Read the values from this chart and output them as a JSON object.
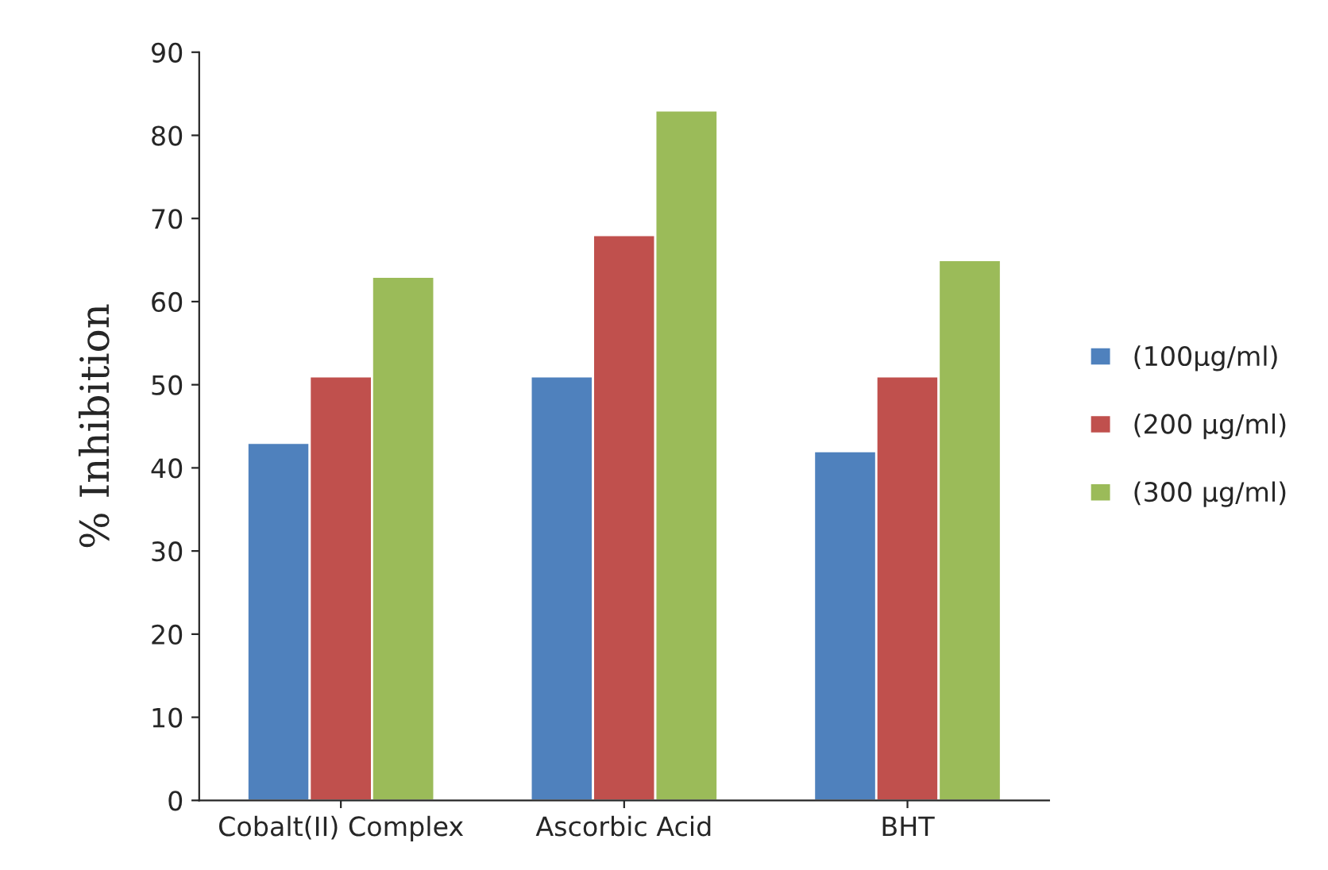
{
  "chart_data": {
    "type": "bar",
    "ylabel": "% Inhibition",
    "categories": [
      "Cobalt(II) Complex",
      "Ascorbic Acid",
      "BHT"
    ],
    "series": [
      {
        "name": "(100μg/ml)",
        "color": "#4f81bd",
        "values": [
          43,
          51,
          42
        ]
      },
      {
        "name": "(200 μg/ml)",
        "color": "#c0504d",
        "values": [
          51,
          68,
          51
        ]
      },
      {
        "name": "(300 μg/ml)",
        "color": "#9bbb59",
        "values": [
          63,
          83,
          65
        ]
      }
    ],
    "ylim": [
      0,
      90
    ],
    "yticks": [
      0,
      10,
      20,
      30,
      40,
      50,
      60,
      70,
      80,
      90
    ],
    "grid": false,
    "legend": "right"
  }
}
